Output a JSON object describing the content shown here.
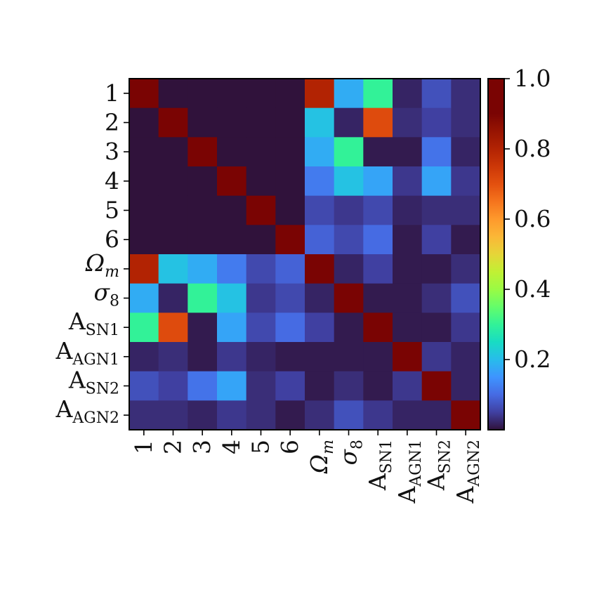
{
  "chart_data": {
    "type": "heatmap",
    "title": "",
    "xlabel": "",
    "ylabel": "",
    "labels": [
      {
        "base": "1",
        "sub": ""
      },
      {
        "base": "2",
        "sub": ""
      },
      {
        "base": "3",
        "sub": ""
      },
      {
        "base": "4",
        "sub": ""
      },
      {
        "base": "5",
        "sub": ""
      },
      {
        "base": "6",
        "sub": ""
      },
      {
        "base": "Ω",
        "sub": "m"
      },
      {
        "base": "σ",
        "sub": "8"
      },
      {
        "base": "A",
        "sub": "SN1"
      },
      {
        "base": "A",
        "sub": "AGN1"
      },
      {
        "base": "A",
        "sub": "SN2"
      },
      {
        "base": "A",
        "sub": "AGN2"
      }
    ],
    "colorbar": {
      "range": [
        0.0,
        1.0
      ],
      "ticks": [
        "0.2",
        "0.4",
        "0.6",
        "0.8",
        "1.0"
      ],
      "tick_values": [
        0.2,
        0.4,
        0.6,
        0.8,
        1.0
      ],
      "colormap": "turbo"
    },
    "values": [
      [
        1.0,
        0.0,
        0.0,
        0.0,
        0.0,
        0.0,
        0.8,
        0.18,
        0.3,
        0.02,
        0.07,
        0.03
      ],
      [
        0.0,
        1.0,
        0.0,
        0.0,
        0.0,
        0.0,
        0.21,
        0.02,
        0.71,
        0.03,
        0.05,
        0.03
      ],
      [
        0.0,
        0.0,
        1.0,
        0.0,
        0.0,
        0.0,
        0.18,
        0.3,
        0.01,
        0.01,
        0.11,
        0.02
      ],
      [
        0.0,
        0.0,
        0.0,
        1.0,
        0.0,
        0.0,
        0.12,
        0.21,
        0.17,
        0.04,
        0.17,
        0.04
      ],
      [
        0.0,
        0.0,
        0.0,
        0.0,
        1.0,
        0.0,
        0.06,
        0.04,
        0.06,
        0.02,
        0.03,
        0.03
      ],
      [
        0.0,
        0.0,
        0.0,
        0.0,
        0.0,
        1.0,
        0.09,
        0.06,
        0.1,
        0.01,
        0.05,
        0.01
      ],
      [
        0.8,
        0.21,
        0.18,
        0.12,
        0.06,
        0.09,
        1.0,
        0.02,
        0.05,
        0.01,
        0.01,
        0.03
      ],
      [
        0.18,
        0.02,
        0.3,
        0.21,
        0.04,
        0.06,
        0.02,
        1.0,
        0.01,
        0.01,
        0.03,
        0.07
      ],
      [
        0.3,
        0.71,
        0.01,
        0.17,
        0.06,
        0.1,
        0.05,
        0.01,
        1.0,
        0.01,
        0.01,
        0.04
      ],
      [
        0.02,
        0.03,
        0.01,
        0.04,
        0.02,
        0.01,
        0.01,
        0.01,
        0.01,
        1.0,
        0.04,
        0.02
      ],
      [
        0.07,
        0.05,
        0.11,
        0.17,
        0.03,
        0.05,
        0.01,
        0.03,
        0.01,
        0.04,
        1.0,
        0.02
      ],
      [
        0.03,
        0.03,
        0.02,
        0.04,
        0.03,
        0.01,
        0.03,
        0.07,
        0.04,
        0.02,
        0.02,
        1.0
      ]
    ]
  }
}
